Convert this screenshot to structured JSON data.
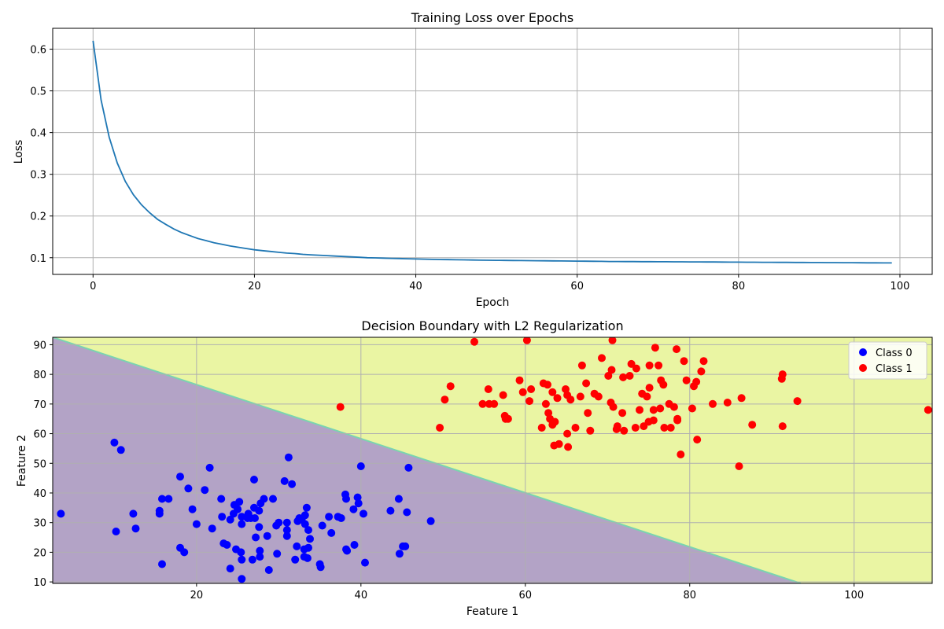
{
  "chart_data": [
    {
      "type": "line",
      "title": "Training Loss over Epochs",
      "xlabel": "Epoch",
      "ylabel": "Loss",
      "xlim": [
        -5,
        104
      ],
      "ylim": [
        0.06,
        0.65
      ],
      "xticks": [
        0,
        20,
        40,
        60,
        80,
        100
      ],
      "yticks": [
        0.1,
        0.2,
        0.3,
        0.4,
        0.5,
        0.6
      ],
      "grid": true,
      "color": "#1f77b4",
      "x": [
        0,
        1,
        2,
        3,
        4,
        5,
        6,
        7,
        8,
        9,
        10,
        11,
        12,
        13,
        14,
        15,
        16,
        17,
        18,
        19,
        20,
        21,
        22,
        23,
        24,
        25,
        26,
        27,
        28,
        29,
        30,
        31,
        32,
        33,
        34,
        35,
        36,
        37,
        38,
        39,
        40,
        41,
        42,
        43,
        44,
        45,
        46,
        47,
        48,
        49,
        50,
        51,
        52,
        53,
        54,
        55,
        56,
        57,
        58,
        59,
        60,
        61,
        62,
        63,
        64,
        65,
        66,
        67,
        68,
        69,
        70,
        71,
        72,
        73,
        74,
        75,
        76,
        77,
        78,
        79,
        80,
        81,
        82,
        83,
        84,
        85,
        86,
        87,
        88,
        89,
        90,
        91,
        92,
        93,
        94,
        95,
        96,
        97,
        98,
        99
      ],
      "y": [
        0.62,
        0.478,
        0.389,
        0.327,
        0.283,
        0.251,
        0.227,
        0.208,
        0.192,
        0.18,
        0.169,
        0.16,
        0.153,
        0.146,
        0.141,
        0.136,
        0.132,
        0.128,
        0.125,
        0.122,
        0.119,
        0.117,
        0.115,
        0.113,
        0.111,
        0.11,
        0.108,
        0.107,
        0.106,
        0.105,
        0.104,
        0.103,
        0.102,
        0.101,
        0.1,
        0.0995,
        0.099,
        0.0985,
        0.098,
        0.0975,
        0.097,
        0.0965,
        0.096,
        0.0957,
        0.0954,
        0.0951,
        0.0948,
        0.0945,
        0.0942,
        0.094,
        0.0938,
        0.0936,
        0.0934,
        0.0932,
        0.093,
        0.0928,
        0.0926,
        0.0924,
        0.0922,
        0.092,
        0.0918,
        0.0916,
        0.0914,
        0.0912,
        0.091,
        0.0909,
        0.0908,
        0.0907,
        0.0906,
        0.0905,
        0.0904,
        0.0903,
        0.0902,
        0.0901,
        0.09,
        0.0899,
        0.0898,
        0.0897,
        0.0896,
        0.0895,
        0.0894,
        0.0893,
        0.0892,
        0.0891,
        0.089,
        0.0889,
        0.0888,
        0.0887,
        0.0886,
        0.0885,
        0.0884,
        0.0883,
        0.0882,
        0.0881,
        0.088,
        0.0879,
        0.0878,
        0.0877,
        0.0876,
        0.0875
      ]
    },
    {
      "type": "scatter",
      "title": "Decision Boundary with L2 Regularization",
      "xlabel": "Feature 1",
      "ylabel": "Feature 2",
      "xlim": [
        2.5,
        109.5
      ],
      "ylim": [
        9.5,
        92.5
      ],
      "xticks": [
        20,
        40,
        60,
        80,
        100
      ],
      "yticks": [
        10,
        20,
        30,
        40,
        50,
        60,
        70,
        80,
        90
      ],
      "grid": true,
      "legend_position": "top-right",
      "regions": [
        {
          "label": "Class 0 region",
          "color": "#b3a3c6"
        },
        {
          "label": "Class 1 region",
          "color": "#eaf5a3"
        }
      ],
      "boundary": {
        "points": [
          [
            2.5,
            92.5
          ],
          [
            93.5,
            9.5
          ]
        ],
        "color": "#7ad4b0"
      },
      "series": [
        {
          "name": "Class 0",
          "color": "#0000ff",
          "points": [
            [
              3.5,
              33
            ],
            [
              10,
              57
            ],
            [
              10.8,
              54.5
            ],
            [
              10.2,
              27
            ],
            [
              12.3,
              33
            ],
            [
              12.6,
              28
            ],
            [
              15.5,
              33
            ],
            [
              15.5,
              34
            ],
            [
              15.8,
              38
            ],
            [
              15.8,
              16
            ],
            [
              16.6,
              38
            ],
            [
              18,
              45.5
            ],
            [
              18,
              21.5
            ],
            [
              18.5,
              20
            ],
            [
              19,
              41.5
            ],
            [
              19.5,
              34.5
            ],
            [
              20,
              29.5
            ],
            [
              21,
              41
            ],
            [
              21.6,
              48.5
            ],
            [
              21.9,
              28
            ],
            [
              23,
              38
            ],
            [
              23.1,
              32
            ],
            [
              23.3,
              23
            ],
            [
              23.7,
              22.5
            ],
            [
              24.1,
              31
            ],
            [
              24.1,
              14.5
            ],
            [
              24.5,
              33
            ],
            [
              24.6,
              36
            ],
            [
              24.8,
              21
            ],
            [
              25,
              34.5
            ],
            [
              25.2,
              37
            ],
            [
              25.4,
              20
            ],
            [
              25.5,
              32
            ],
            [
              25.5,
              29.5
            ],
            [
              25.5,
              17.5
            ],
            [
              25.5,
              11
            ],
            [
              26.3,
              33
            ],
            [
              26.2,
              31.5
            ],
            [
              26.6,
              31.5
            ],
            [
              26.8,
              17.5
            ],
            [
              27,
              35
            ],
            [
              27,
              44.5
            ],
            [
              27.1,
              31.5
            ],
            [
              27.2,
              25
            ],
            [
              27.6,
              34
            ],
            [
              27.6,
              28.5
            ],
            [
              27.7,
              20.5
            ],
            [
              27.7,
              18.5
            ],
            [
              27.8,
              36.5
            ],
            [
              28.2,
              38
            ],
            [
              28.6,
              25.5
            ],
            [
              28.8,
              14
            ],
            [
              29.3,
              38
            ],
            [
              29.7,
              29
            ],
            [
              29.8,
              19.5
            ],
            [
              30,
              30
            ],
            [
              30.7,
              44
            ],
            [
              31,
              30
            ],
            [
              31,
              27.5
            ],
            [
              31,
              25.5
            ],
            [
              31.2,
              52
            ],
            [
              31.6,
              43
            ],
            [
              32,
              17.5
            ],
            [
              32.2,
              22
            ],
            [
              32.3,
              30.5
            ],
            [
              32.5,
              31.5
            ],
            [
              32.8,
              31
            ],
            [
              33.1,
              21
            ],
            [
              33.1,
              18.5
            ],
            [
              33.2,
              29.5
            ],
            [
              33.2,
              32.5
            ],
            [
              33.4,
              35
            ],
            [
              33.5,
              18
            ],
            [
              33.6,
              21.5
            ],
            [
              33.6,
              27.5
            ],
            [
              33.8,
              24.5
            ],
            [
              35,
              16
            ],
            [
              35.1,
              15
            ],
            [
              35.3,
              29
            ],
            [
              36.1,
              32
            ],
            [
              36.4,
              26.5
            ],
            [
              37.2,
              32
            ],
            [
              37.6,
              31.5
            ],
            [
              38.1,
              39.5
            ],
            [
              38.2,
              38
            ],
            [
              38.2,
              21
            ],
            [
              38.3,
              20.5
            ],
            [
              39.1,
              34.5
            ],
            [
              39.2,
              22.5
            ],
            [
              39.6,
              38.5
            ],
            [
              39.7,
              36.5
            ],
            [
              40,
              49
            ],
            [
              40.3,
              33
            ],
            [
              40.5,
              16.5
            ],
            [
              43.6,
              34
            ],
            [
              44.6,
              38
            ],
            [
              44.7,
              19.5
            ],
            [
              45.1,
              22
            ],
            [
              45.4,
              22
            ],
            [
              45.6,
              33.5
            ],
            [
              45.8,
              48.5
            ],
            [
              48.5,
              30.5
            ]
          ]
        },
        {
          "name": "Class 1",
          "color": "#ff0000",
          "points": [
            [
              37.5,
              69
            ],
            [
              49.6,
              62
            ],
            [
              50.2,
              71.5
            ],
            [
              50.9,
              76
            ],
            [
              53.8,
              91
            ],
            [
              54.8,
              70
            ],
            [
              55.5,
              75
            ],
            [
              55.6,
              70
            ],
            [
              56.2,
              70
            ],
            [
              57.3,
              73
            ],
            [
              57.5,
              66
            ],
            [
              57.6,
              65
            ],
            [
              57.9,
              65
            ],
            [
              59.3,
              78
            ],
            [
              59.7,
              74
            ],
            [
              60.2,
              91.5
            ],
            [
              60.5,
              71
            ],
            [
              60.7,
              75
            ],
            [
              62,
              62
            ],
            [
              62.2,
              77
            ],
            [
              62.5,
              70
            ],
            [
              62.7,
              76.5
            ],
            [
              62.8,
              67
            ],
            [
              63,
              65
            ],
            [
              63.3,
              74
            ],
            [
              63.3,
              63
            ],
            [
              63.5,
              56
            ],
            [
              63.6,
              64
            ],
            [
              63.9,
              72
            ],
            [
              64.1,
              56.5
            ],
            [
              64.9,
              75
            ],
            [
              65.1,
              73
            ],
            [
              65.1,
              60
            ],
            [
              65.2,
              55.5
            ],
            [
              65.5,
              71.5
            ],
            [
              66.1,
              62
            ],
            [
              66.7,
              72.5
            ],
            [
              66.9,
              83
            ],
            [
              67.4,
              77
            ],
            [
              67.6,
              67
            ],
            [
              67.9,
              61
            ],
            [
              68.4,
              73.5
            ],
            [
              68.9,
              72.5
            ],
            [
              69.3,
              85.5
            ],
            [
              70.1,
              79.5
            ],
            [
              70.4,
              70.5
            ],
            [
              70.5,
              81.5
            ],
            [
              70.6,
              91.5
            ],
            [
              70.7,
              69
            ],
            [
              71.1,
              61.5
            ],
            [
              71.2,
              62.5
            ],
            [
              71.8,
              67
            ],
            [
              71.9,
              79
            ],
            [
              72,
              61
            ],
            [
              72.7,
              79.5
            ],
            [
              72.9,
              83.5
            ],
            [
              73.4,
              62
            ],
            [
              73.5,
              82
            ],
            [
              73.9,
              68
            ],
            [
              74.2,
              73.5
            ],
            [
              74.4,
              62.5
            ],
            [
              74.8,
              72.5
            ],
            [
              75,
              64
            ],
            [
              75.1,
              75.5
            ],
            [
              75.1,
              83
            ],
            [
              75.6,
              68
            ],
            [
              75.6,
              64.5
            ],
            [
              75.8,
              89
            ],
            [
              76.2,
              83
            ],
            [
              76.4,
              68.5
            ],
            [
              76.5,
              78
            ],
            [
              76.8,
              76.5
            ],
            [
              76.9,
              62
            ],
            [
              77.5,
              70
            ],
            [
              77.7,
              62
            ],
            [
              78.1,
              69
            ],
            [
              78.4,
              88.5
            ],
            [
              78.5,
              64.5
            ],
            [
              78.5,
              65
            ],
            [
              78.9,
              53
            ],
            [
              79.3,
              84.5
            ],
            [
              79.6,
              78
            ],
            [
              80.3,
              68.5
            ],
            [
              80.5,
              76
            ],
            [
              80.8,
              77.5
            ],
            [
              80.9,
              58
            ],
            [
              81.4,
              81
            ],
            [
              81.7,
              84.5
            ],
            [
              82.8,
              70
            ],
            [
              84.6,
              70.5
            ],
            [
              86,
              49
            ],
            [
              86.3,
              72
            ],
            [
              87.6,
              63
            ],
            [
              91.2,
              78.5
            ],
            [
              91.3,
              80
            ],
            [
              91.3,
              62.5
            ],
            [
              93.1,
              71
            ],
            [
              109,
              68
            ]
          ]
        }
      ]
    }
  ]
}
